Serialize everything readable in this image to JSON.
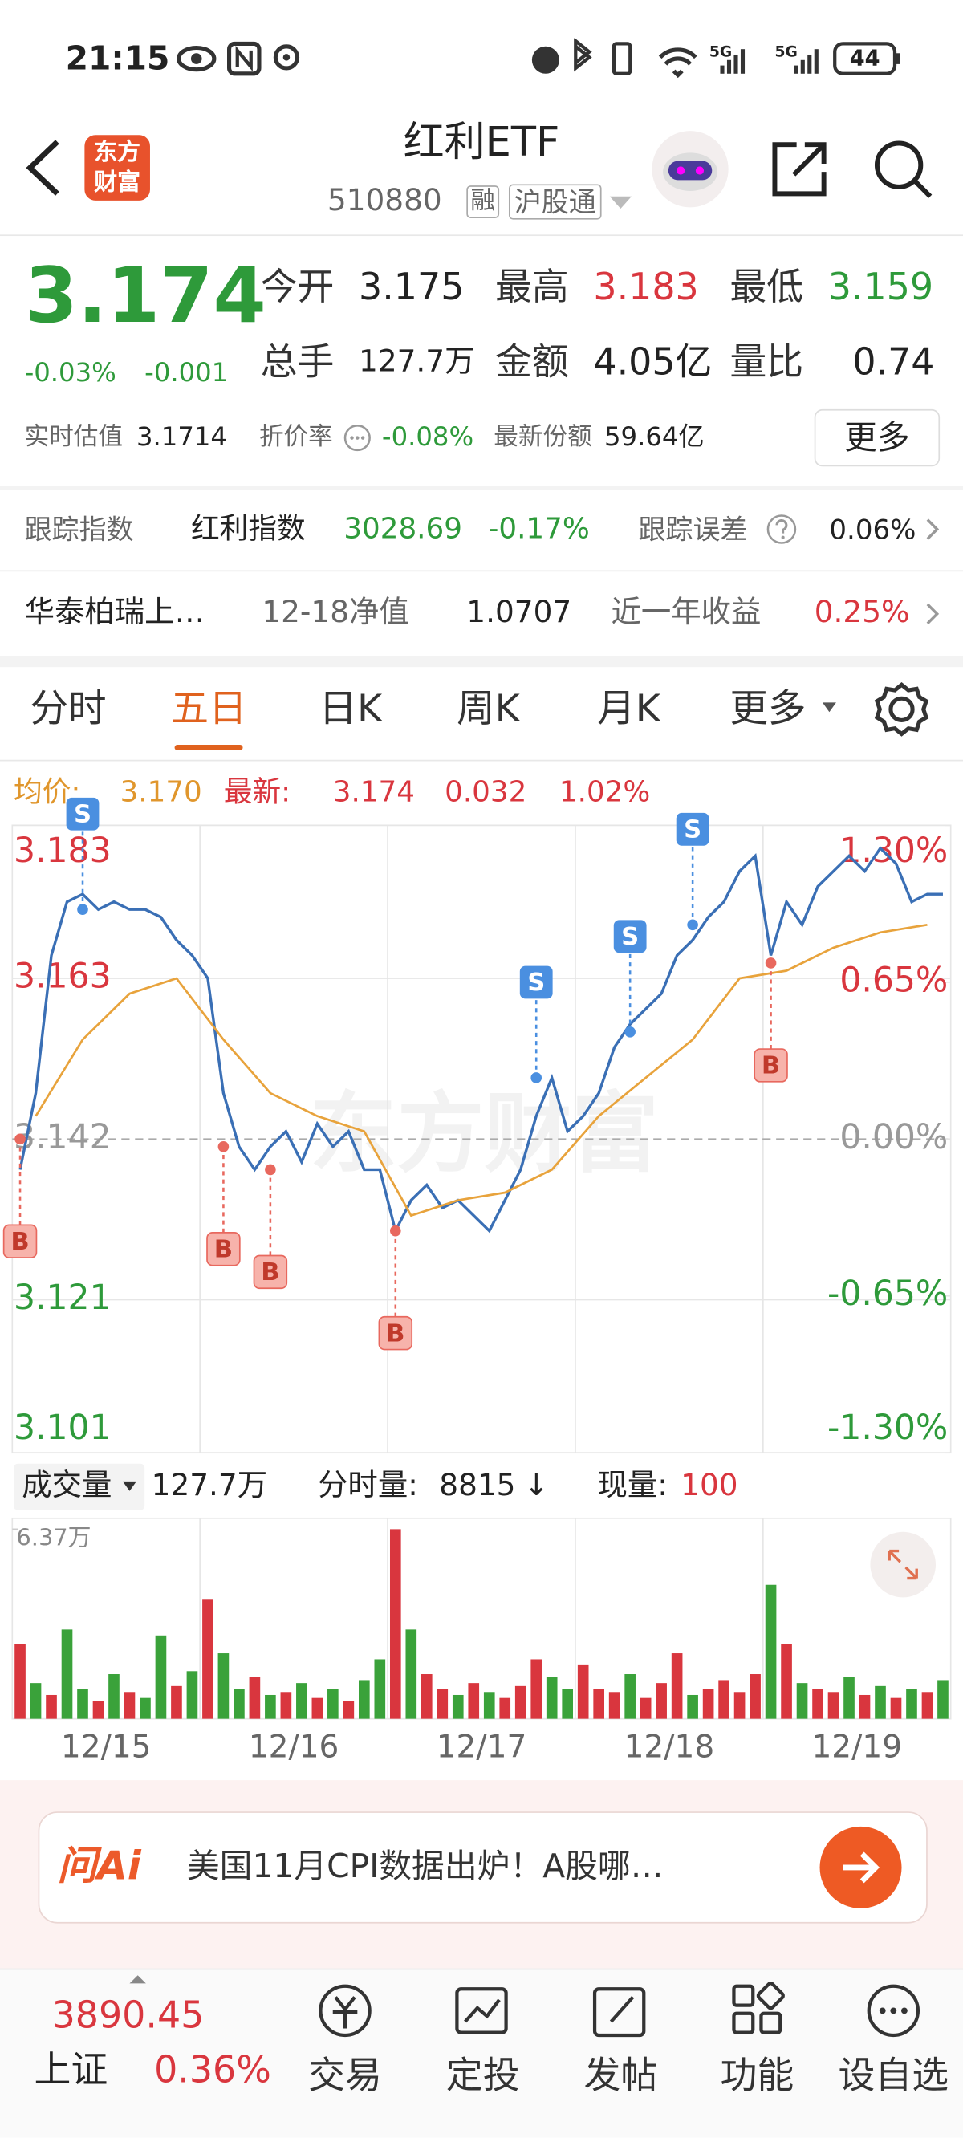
{
  "status_bar": {
    "time": "21:15",
    "net1": "5G",
    "net2": "5G",
    "battery": "44"
  },
  "header": {
    "logo": "东方财富",
    "title": "红利ETF",
    "code": "510880",
    "tags": [
      "融",
      "沪股通"
    ]
  },
  "quote": {
    "price": "3.174",
    "change_pct": "-0.03%",
    "change": "-0.001",
    "fields": [
      {
        "label": "今开",
        "value": "3.175"
      },
      {
        "label": "最高",
        "value": "3.183"
      },
      {
        "label": "最低",
        "value": "3.159"
      },
      {
        "label": "总手",
        "value": "127.7万"
      },
      {
        "label": "金额",
        "value": "4.05亿"
      },
      {
        "label": "量比",
        "value": "0.74"
      }
    ],
    "estimate_label": "实时估值",
    "estimate": "3.1714",
    "discount_label": "折价率",
    "discount": "-0.08%",
    "shares_label": "最新份额",
    "shares": "59.64亿",
    "more": "更多"
  },
  "tracking": {
    "label": "跟踪指数",
    "index": "红利指数",
    "index_value": "3028.69",
    "index_change": "-0.17%",
    "error_label": "跟踪误差",
    "error": "0.06%"
  },
  "fund": {
    "name": "华泰柏瑞上…",
    "nav_label": "12-18净值",
    "nav": "1.0707",
    "return_label": "近一年收益",
    "return": "0.25%"
  },
  "tabs": {
    "items": [
      "分时",
      "五日",
      "日K",
      "周K",
      "月K",
      "更多"
    ],
    "active": 1
  },
  "legend": {
    "avg_label": "均价:",
    "avg": "3.170",
    "last_label": "最新:",
    "last": "3.174",
    "change": "0.032",
    "change_pct": "1.02%"
  },
  "watermark": "东方财富",
  "volume_header": {
    "label": "成交量",
    "total": "127.7万",
    "tick_label": "分时量:",
    "tick": "8815",
    "tick_arrow": "↓",
    "now_label": "现量:",
    "now": "100"
  },
  "chart_data": [
    {
      "type": "line",
      "ylim": [
        3.101,
        3.183
      ],
      "yticks": [
        3.183,
        3.163,
        3.142,
        3.121,
        3.101
      ],
      "y2lim": [
        -1.3,
        1.3
      ],
      "y2ticks": [
        {
          "value": 1.3,
          "label": "1.30%"
        },
        {
          "value": 0.65,
          "label": "0.65%"
        },
        {
          "value": 0,
          "label": "0.00%"
        },
        {
          "value": -0.65,
          "label": "-0.65%"
        },
        {
          "value": -1.3,
          "label": "-1.30%"
        }
      ],
      "series": [
        {
          "color": "#3a6fb5",
          "values": [
            3.138,
            3.148,
            3.166,
            3.173,
            3.174,
            3.172,
            3.173,
            3.172,
            3.172,
            3.171,
            3.168,
            3.166,
            3.163,
            3.148,
            3.141,
            3.138,
            3.141,
            3.143,
            3.139,
            3.144,
            3.141,
            3.143,
            3.138,
            3.138,
            3.13,
            3.134,
            3.136,
            3.133,
            3.134,
            3.132,
            3.13,
            3.134,
            3.138,
            3.145,
            3.15,
            3.143,
            3.145,
            3.148,
            3.154,
            3.157,
            3.159,
            3.161,
            3.166,
            3.168,
            3.171,
            3.173,
            3.177,
            3.179,
            3.166,
            3.173,
            3.17,
            3.175,
            3.177,
            3.179,
            3.177,
            3.18,
            3.178,
            3.173,
            3.174,
            3.174
          ]
        },
        {
          "color": "#e8a33c",
          "values": [
            3.145,
            3.155,
            3.161,
            3.163,
            3.155,
            3.148,
            3.145,
            3.143,
            3.132,
            3.134,
            3.135,
            3.138,
            3.145,
            3.15,
            3.155,
            3.163,
            3.164,
            3.167,
            3.169,
            3.17
          ]
        }
      ],
      "markers": [
        {
          "label": "B",
          "x": 0,
          "value": 3.142
        },
        {
          "label": "S",
          "x": 4,
          "value": 3.172
        },
        {
          "label": "B",
          "x": 13,
          "value": 3.141
        },
        {
          "label": "B",
          "x": 16,
          "value": 3.138
        },
        {
          "label": "B",
          "x": 24,
          "value": 3.13
        },
        {
          "label": "S",
          "x": 33,
          "value": 3.15
        },
        {
          "label": "S",
          "x": 39,
          "value": 3.156
        },
        {
          "label": "S",
          "x": 43,
          "value": 3.17
        },
        {
          "label": "B",
          "x": 48,
          "value": 3.165
        }
      ]
    },
    {
      "type": "bar",
      "ylim": [
        0,
        6.37
      ],
      "yticks": [
        {
          "value": 6.37,
          "label": "6.37万"
        }
      ],
      "x_labels": [
        "12/15",
        "12/16",
        "12/17",
        "12/18",
        "12/19"
      ],
      "values": [
        2.5,
        1.2,
        0.8,
        3.0,
        1.0,
        0.6,
        1.5,
        0.9,
        0.7,
        2.8,
        1.1,
        1.6,
        4.0,
        2.2,
        1.0,
        1.4,
        0.8,
        0.9,
        1.2,
        0.7,
        1.0,
        0.6,
        1.3,
        2.0,
        6.37,
        3.0,
        1.5,
        1.0,
        0.8,
        1.2,
        0.9,
        0.7,
        1.1,
        2.0,
        1.4,
        1.0,
        1.8,
        1.0,
        0.9,
        1.5,
        0.7,
        1.2,
        2.2,
        0.8,
        1.0,
        1.3,
        0.9,
        1.5,
        4.5,
        2.5,
        1.2,
        1.0,
        0.9,
        1.4,
        0.8,
        1.1,
        0.7,
        1.0,
        0.9,
        1.3
      ],
      "bar_colors": [
        "#d9363e",
        "#3aa23a",
        "#d9363e",
        "#3aa23a",
        "#3aa23a",
        "#d9363e",
        "#3aa23a",
        "#d9363e",
        "#3aa23a",
        "#3aa23a",
        "#d9363e",
        "#3aa23a",
        "#d9363e",
        "#3aa23a",
        "#3aa23a",
        "#d9363e",
        "#3aa23a",
        "#d9363e",
        "#3aa23a",
        "#d9363e",
        "#3aa23a",
        "#d9363e",
        "#3aa23a",
        "#3aa23a",
        "#d9363e",
        "#3aa23a",
        "#d9363e",
        "#d9363e",
        "#3aa23a",
        "#d9363e",
        "#3aa23a",
        "#d9363e",
        "#d9363e",
        "#d9363e",
        "#3aa23a",
        "#3aa23a",
        "#d9363e",
        "#d9363e",
        "#d9363e",
        "#3aa23a",
        "#d9363e",
        "#d9363e",
        "#d9363e",
        "#3aa23a",
        "#d9363e",
        "#d9363e",
        "#d9363e",
        "#d9363e",
        "#3aa23a",
        "#d9363e",
        "#3aa23a",
        "#d9363e",
        "#d9363e",
        "#3aa23a",
        "#d9363e",
        "#3aa23a",
        "#d9363e",
        "#3aa23a",
        "#d9363e",
        "#3aa23a"
      ]
    }
  ],
  "banner": {
    "brand": "问Ai",
    "text": "美国11月CPI数据出炉！A股哪…"
  },
  "nav": {
    "index_value": "3890.45",
    "index_name": "上证",
    "index_change": "0.36%",
    "items": [
      "交易",
      "定投",
      "发帖",
      "功能",
      "设自选"
    ]
  }
}
